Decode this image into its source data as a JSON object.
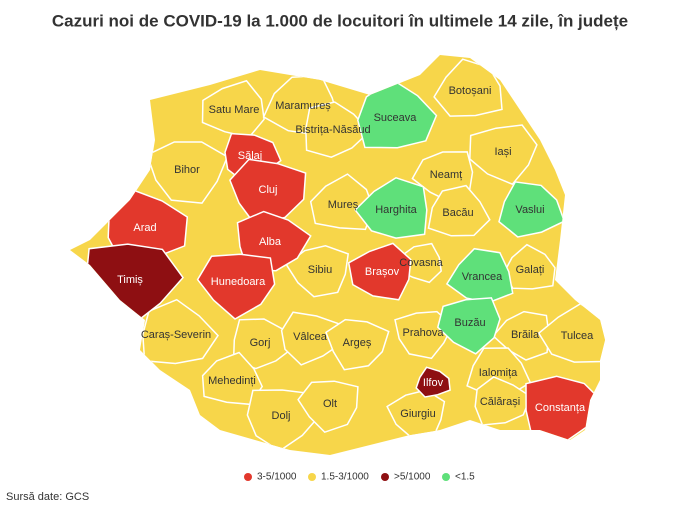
{
  "title": "Cazuri noi de COVID-19 la 1.000 de locuitori în ultimele 14 zile, în județe",
  "counties": [
    {
      "name": "Satu Mare",
      "color": "#f7d64a"
    },
    {
      "name": "Maramureș",
      "color": "#f7d64a"
    },
    {
      "name": "Botoșani",
      "color": "#f7d64a"
    },
    {
      "name": "Suceava",
      "color": "#5fe07a"
    },
    {
      "name": "Bistrița-Năsăud",
      "color": "#f7d64a"
    },
    {
      "name": "Sălaj",
      "color": "#e2382c"
    },
    {
      "name": "Cluj",
      "color": "#e2382c"
    },
    {
      "name": "Bihor",
      "color": "#f7d64a"
    },
    {
      "name": "Iași",
      "color": "#f7d64a"
    },
    {
      "name": "Neamț",
      "color": "#f7d64a"
    },
    {
      "name": "Harghita",
      "color": "#5fe07a"
    },
    {
      "name": "Mureș",
      "color": "#f7d64a"
    },
    {
      "name": "Bacău",
      "color": "#f7d64a"
    },
    {
      "name": "Vaslui",
      "color": "#5fe07a"
    },
    {
      "name": "Arad",
      "color": "#e2382c"
    },
    {
      "name": "Alba",
      "color": "#e2382c"
    },
    {
      "name": "Timiș",
      "color": "#8e0f12"
    },
    {
      "name": "Hunedoara",
      "color": "#e2382c"
    },
    {
      "name": "Sibiu",
      "color": "#f7d64a"
    },
    {
      "name": "Brașov",
      "color": "#e2382c"
    },
    {
      "name": "Covasna",
      "color": "#f7d64a"
    },
    {
      "name": "Vrancea",
      "color": "#5fe07a"
    },
    {
      "name": "Galați",
      "color": "#f7d64a"
    },
    {
      "name": "Caraș-Severin",
      "color": "#f7d64a"
    },
    {
      "name": "Gorj",
      "color": "#f7d64a"
    },
    {
      "name": "Vâlcea",
      "color": "#f7d64a"
    },
    {
      "name": "Argeș",
      "color": "#f7d64a"
    },
    {
      "name": "Prahova",
      "color": "#f7d64a"
    },
    {
      "name": "Buzău",
      "color": "#5fe07a"
    },
    {
      "name": "Brăila",
      "color": "#f7d64a"
    },
    {
      "name": "Tulcea",
      "color": "#f7d64a"
    },
    {
      "name": "Mehedinți",
      "color": "#f7d64a"
    },
    {
      "name": "Ialomița",
      "color": "#f7d64a"
    },
    {
      "name": "Ilfov",
      "color": "#8e0f12"
    },
    {
      "name": "Călărași",
      "color": "#f7d64a"
    },
    {
      "name": "Constanța",
      "color": "#e2382c"
    },
    {
      "name": "Dolj",
      "color": "#f7d64a"
    },
    {
      "name": "Olt",
      "color": "#f7d64a"
    },
    {
      "name": "Giurgiu",
      "color": "#f7d64a"
    }
  ],
  "legend": [
    {
      "label": "3-5/1000",
      "color": "#e2382c"
    },
    {
      "label": "1.5-3/1000",
      "color": "#f7d64a"
    },
    {
      "label": ">5/1000",
      "color": "#8e0f12"
    },
    {
      "label": "<1.5",
      "color": "#5fe07a"
    }
  ],
  "source": "Sursă date: GCS"
}
